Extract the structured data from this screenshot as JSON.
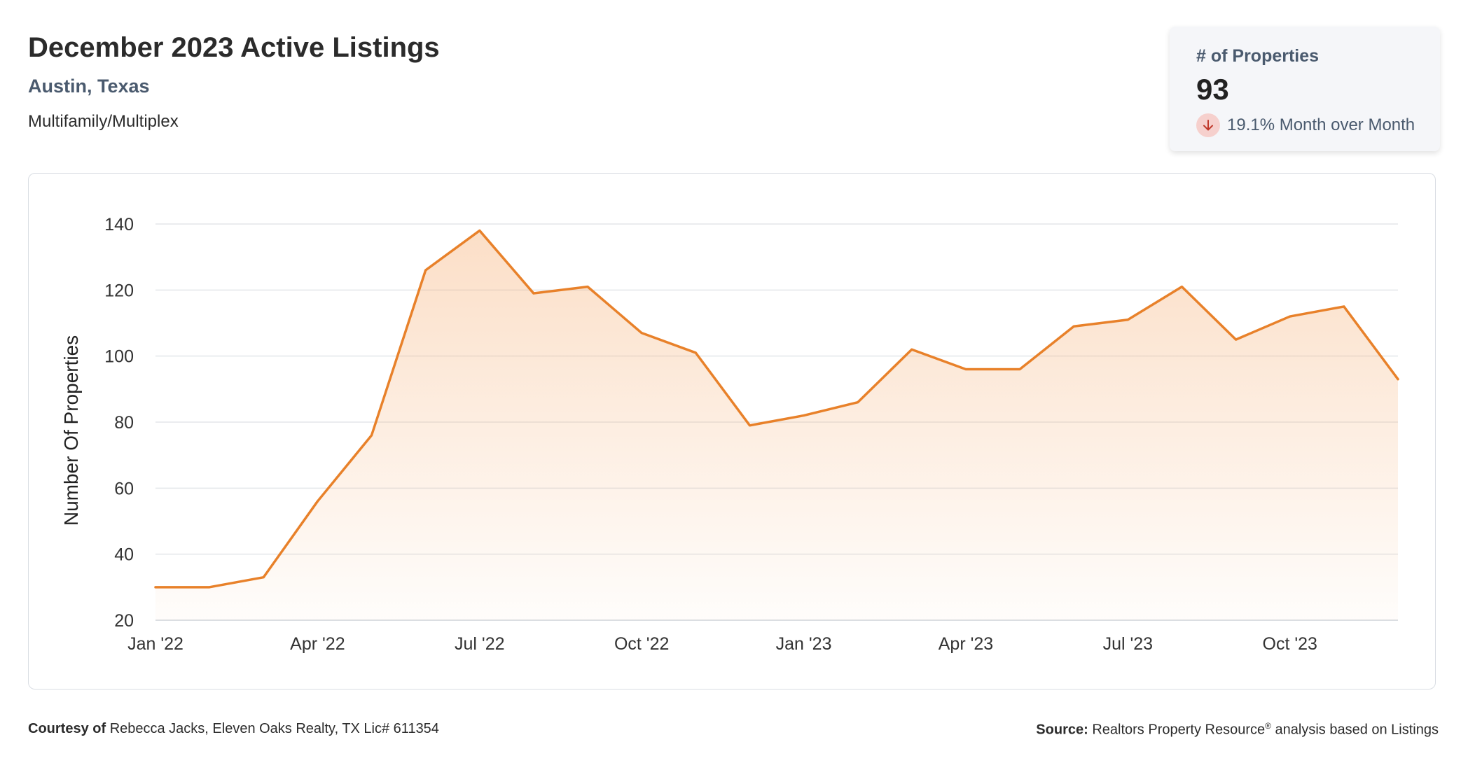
{
  "header": {
    "title": "December 2023 Active Listings",
    "location": "Austin, Texas",
    "property_type": "Multifamily/Multiplex"
  },
  "kpi": {
    "label": "# of Properties",
    "value": "93",
    "change_text": "19.1% Month over Month",
    "change_direction": "down",
    "icon": "arrow-down-icon",
    "down_color": "#c0392b"
  },
  "chart_data": {
    "type": "area",
    "ylabel": "Number Of Properties",
    "xlabel": "",
    "ylim": [
      20,
      140
    ],
    "yticks": [
      "20",
      "40",
      "60",
      "80",
      "100",
      "120",
      "140"
    ],
    "xtick_labels": [
      "Jan '22",
      "Apr '22",
      "Jul '22",
      "Oct '22",
      "Jan '23",
      "Apr '23",
      "Jul '23",
      "Oct '23"
    ],
    "x": [
      "2022-01",
      "2022-02",
      "2022-03",
      "2022-04",
      "2022-05",
      "2022-06",
      "2022-07",
      "2022-08",
      "2022-09",
      "2022-10",
      "2022-11",
      "2022-12",
      "2023-01",
      "2023-02",
      "2023-03",
      "2023-04",
      "2023-05",
      "2023-06",
      "2023-07",
      "2023-08",
      "2023-09",
      "2023-10",
      "2023-11",
      "2023-12"
    ],
    "series": [
      {
        "values": [
          30,
          30,
          33,
          56,
          76,
          126,
          138,
          119,
          121,
          107,
          101,
          79,
          82,
          86,
          102,
          96,
          96,
          109,
          111,
          121,
          105,
          112,
          115,
          93
        ]
      }
    ],
    "grid": true,
    "legend": "none",
    "line_color": "#e8812a",
    "fill_color": "#f6b27a"
  },
  "footer": {
    "courtesy_label": "Courtesy of",
    "courtesy_text": "Rebecca Jacks, Eleven Oaks Realty, TX Lic# 611354",
    "source_label": "Source:",
    "source_text": "Realtors Property Resource",
    "source_mark": "®",
    "source_suffix": "analysis based on Listings"
  }
}
